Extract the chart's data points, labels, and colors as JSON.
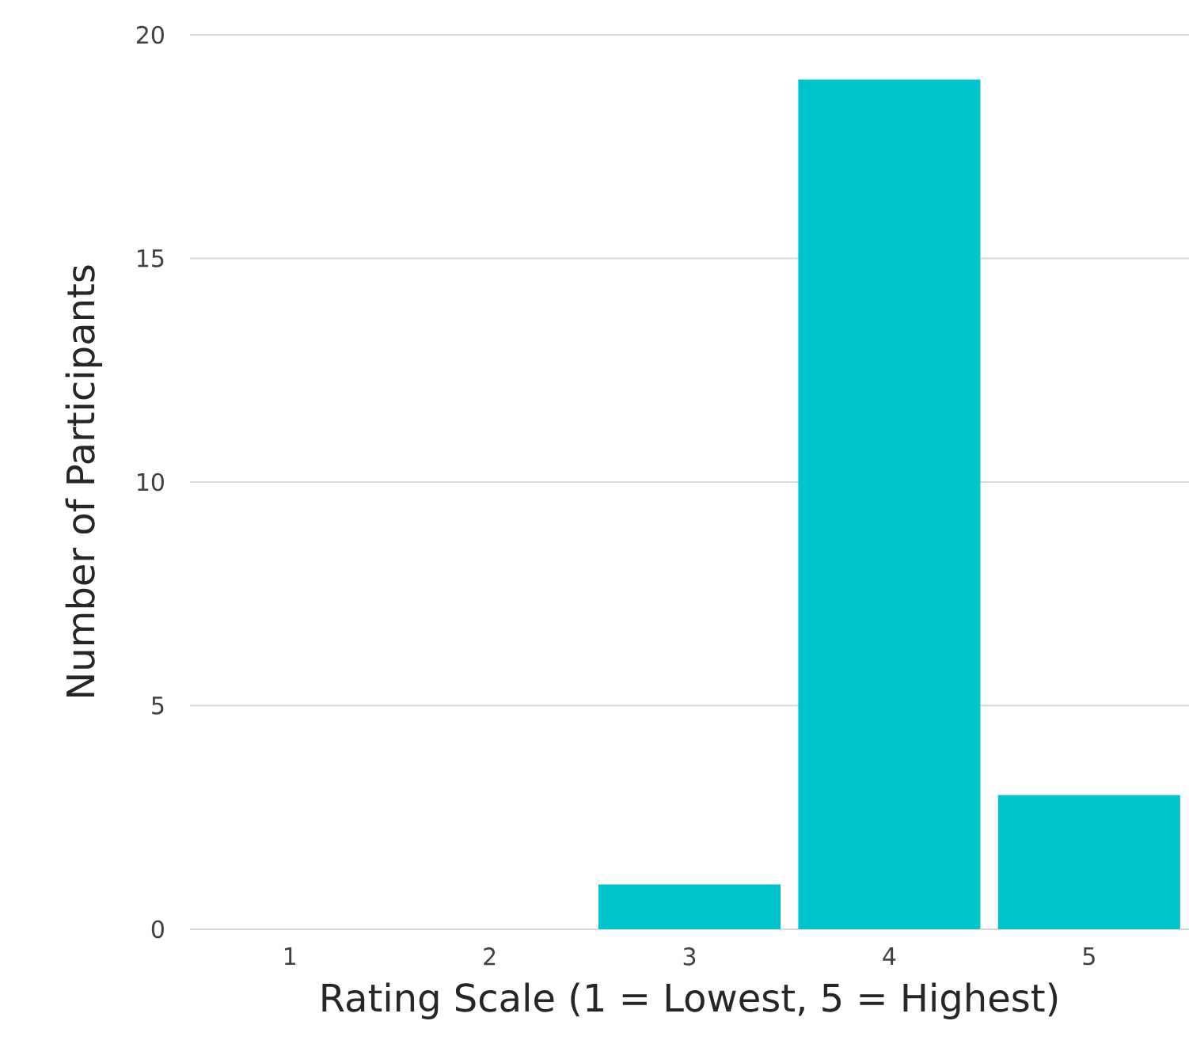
{
  "chart_data": {
    "type": "bar",
    "xlabel": "Rating Scale (1 = Lowest, 5 = Highest)",
    "ylabel": "Number of Participants",
    "categories": [
      "1",
      "2",
      "3",
      "4",
      "5"
    ],
    "values": [
      0,
      0,
      1,
      19,
      3
    ],
    "color": "#00c4cc",
    "ylim": [
      0,
      20
    ],
    "yticks": [
      0,
      5,
      10,
      15,
      20
    ],
    "grid": "y"
  }
}
